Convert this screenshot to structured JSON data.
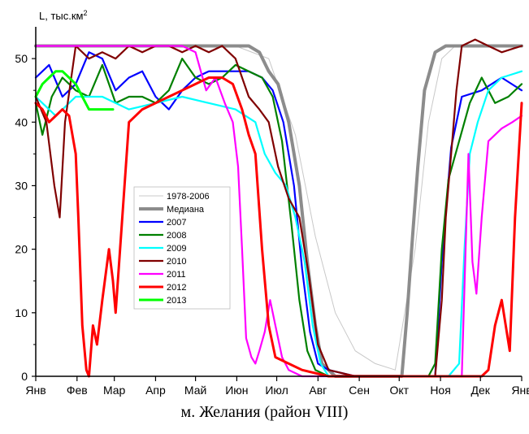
{
  "chart_data": {
    "type": "line",
    "ylabel": "L, тыс.км",
    "ylabel_sup": "2",
    "xlabel": "",
    "ylim": [
      0,
      55
    ],
    "xlim": [
      0,
      365
    ],
    "yticks": [
      0,
      10,
      20,
      30,
      40,
      50
    ],
    "month_labels": [
      "Янв",
      "Фев",
      "Мар",
      "Апр",
      "Май",
      "Июн",
      "Июл",
      "Авг",
      "Сен",
      "Окт",
      "Ноя",
      "Дек",
      "Янв"
    ],
    "month_starts": [
      0,
      31,
      59,
      90,
      120,
      151,
      181,
      212,
      243,
      273,
      304,
      334,
      365
    ],
    "legend_position": "center-left",
    "caption": "м. Желания (район VIII)",
    "series": [
      {
        "name": "1978-2006",
        "color": "#c8c8c8",
        "width": 1.0,
        "legend": true,
        "x": [
          0,
          150,
          175,
          195,
          210,
          225,
          240,
          255,
          270,
          285,
          295,
          305,
          315,
          330,
          365
        ],
        "y": [
          52,
          52,
          50,
          38,
          22,
          10,
          4,
          2,
          1,
          20,
          40,
          50,
          52,
          52,
          52
        ]
      },
      {
        "name": "Медиана",
        "color": "#8c8c8c",
        "width": 4.0,
        "legend": true,
        "x": [
          0,
          160,
          168,
          175,
          182,
          190,
          198,
          204,
          210,
          215,
          225,
          240,
          255,
          268,
          275,
          279,
          283,
          287,
          292,
          296,
          300,
          308,
          365
        ],
        "y": [
          52,
          52,
          51,
          48,
          46,
          40,
          30,
          18,
          8,
          2,
          0,
          0,
          0,
          0,
          0,
          10,
          22,
          33,
          45,
          48,
          51,
          52,
          52
        ]
      },
      {
        "name": "2007",
        "color": "#0000ff",
        "width": 2.2,
        "legend": true,
        "x": [
          0,
          10,
          20,
          30,
          40,
          50,
          60,
          70,
          80,
          90,
          100,
          110,
          120,
          130,
          140,
          150,
          160,
          170,
          178,
          186,
          194,
          200,
          206,
          212,
          220,
          240,
          260,
          280,
          295,
          300,
          305,
          312,
          320,
          335,
          350,
          365
        ],
        "y": [
          47,
          49,
          44,
          46,
          51,
          50,
          45,
          47,
          48,
          44,
          42,
          45,
          47,
          48,
          48,
          48,
          48,
          47,
          45,
          40,
          30,
          17,
          7,
          2,
          1,
          0,
          0,
          0,
          0,
          0,
          18,
          36,
          44,
          45,
          47,
          45
        ]
      },
      {
        "name": "2008",
        "color": "#008000",
        "width": 2.2,
        "legend": true,
        "x": [
          0,
          5,
          12,
          20,
          30,
          40,
          50,
          60,
          70,
          80,
          90,
          100,
          110,
          120,
          130,
          140,
          150,
          160,
          170,
          178,
          185,
          192,
          198,
          204,
          210,
          220,
          240,
          260,
          280,
          295,
          300,
          305,
          310,
          318,
          326,
          335,
          345,
          355,
          365
        ],
        "y": [
          43,
          38,
          44,
          47,
          45,
          44,
          49,
          43,
          44,
          44,
          43,
          45,
          50,
          47,
          46,
          47,
          49,
          48,
          47,
          44,
          37,
          24,
          12,
          4,
          1,
          0,
          0,
          0,
          0,
          0,
          2,
          20,
          31,
          37,
          43,
          47,
          43,
          44,
          46
        ]
      },
      {
        "name": "2009",
        "color": "#00ffff",
        "width": 2.2,
        "legend": true,
        "x": [
          0,
          15,
          30,
          50,
          70,
          90,
          110,
          130,
          150,
          165,
          172,
          180,
          188,
          195,
          202,
          208,
          214,
          220,
          240,
          260,
          280,
          300,
          310,
          318,
          322,
          326,
          332,
          340,
          350,
          365
        ],
        "y": [
          44,
          41,
          44,
          44,
          42,
          43,
          44,
          43,
          42,
          40,
          35,
          32,
          30,
          25,
          18,
          8,
          2,
          0,
          0,
          0,
          0,
          0,
          0,
          2,
          20,
          35,
          40,
          45,
          47,
          48
        ]
      },
      {
        "name": "2010",
        "color": "#800000",
        "width": 2.2,
        "legend": true,
        "x": [
          0,
          8,
          14,
          18,
          22,
          26,
          30,
          40,
          50,
          60,
          70,
          80,
          90,
          100,
          110,
          120,
          130,
          140,
          150,
          160,
          168,
          175,
          182,
          190,
          198,
          205,
          212,
          220,
          240,
          260,
          280,
          300,
          305,
          308,
          312,
          316,
          320,
          330,
          340,
          350,
          365
        ],
        "y": [
          44,
          40,
          30,
          25,
          40,
          46,
          52,
          50,
          51,
          50,
          52,
          51,
          52,
          52,
          51,
          52,
          51,
          52,
          50,
          44,
          42,
          40,
          33,
          28,
          25,
          16,
          5,
          1,
          0,
          0,
          0,
          0,
          12,
          25,
          35,
          45,
          52,
          53,
          52,
          51,
          52
        ]
      },
      {
        "name": "2011",
        "color": "#ff00ff",
        "width": 2.2,
        "legend": true,
        "x": [
          0,
          20,
          40,
          60,
          80,
          100,
          110,
          120,
          128,
          135,
          142,
          148,
          152,
          155,
          158,
          162,
          165,
          168,
          172,
          176,
          180,
          185,
          190,
          200,
          220,
          240,
          260,
          280,
          300,
          320,
          325,
          328,
          331,
          335,
          340,
          350,
          358,
          365
        ],
        "y": [
          52,
          52,
          52,
          52,
          52,
          52,
          52,
          51,
          45,
          47,
          43,
          40,
          33,
          20,
          6,
          3,
          2,
          4,
          7,
          12,
          8,
          3,
          1,
          0,
          0,
          0,
          0,
          0,
          0,
          0,
          35,
          18,
          13,
          25,
          37,
          39,
          40,
          41
        ]
      },
      {
        "name": "2012",
        "color": "#ff0000",
        "width": 3.0,
        "legend": true,
        "x": [
          0,
          5,
          10,
          15,
          20,
          25,
          30,
          32,
          35,
          38,
          40,
          43,
          46,
          50,
          55,
          58,
          60,
          70,
          80,
          90,
          100,
          110,
          120,
          130,
          140,
          148,
          155,
          160,
          165,
          170,
          175,
          180,
          190,
          200,
          220,
          240,
          260,
          280,
          300,
          320,
          330,
          335,
          340,
          345,
          350,
          356,
          360,
          365
        ],
        "y": [
          43,
          42,
          40,
          41,
          42,
          41,
          35,
          25,
          8,
          1,
          0,
          8,
          5,
          12,
          20,
          15,
          10,
          40,
          42,
          43,
          44,
          45,
          46,
          47,
          47,
          46,
          42,
          38,
          35,
          20,
          8,
          3,
          2,
          1,
          0,
          0,
          0,
          0,
          0,
          0,
          0,
          0,
          1,
          8,
          12,
          4,
          25,
          43
        ]
      },
      {
        "name": "2013",
        "color": "#00ff00",
        "width": 3.0,
        "legend": true,
        "x": [
          0,
          5,
          10,
          15,
          20,
          25,
          30,
          35,
          40,
          45,
          50,
          55,
          58
        ],
        "y": [
          44,
          46,
          47,
          48,
          48,
          47,
          46,
          44,
          42,
          42,
          42,
          42,
          42
        ]
      }
    ]
  }
}
